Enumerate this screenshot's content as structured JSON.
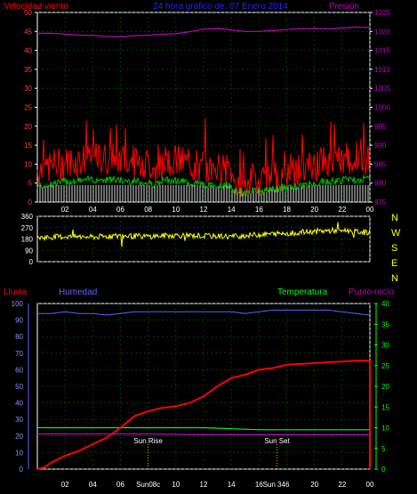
{
  "header": {
    "left_label": "Velocidad viento",
    "title": "24 hora gráfico de:  07 Enero 2014",
    "right_label": "Presión"
  },
  "colors": {
    "wind": "#ff0000",
    "gust_green": "#00c000",
    "calm_white": "#ffffff",
    "pressure": "#c000c0",
    "direction": "#ffff00",
    "rain": "#ff0000",
    "humidity": "#6060ff",
    "temperature": "#00ff00",
    "dewpoint": "#c000c0",
    "title_blue": "#2020ff",
    "axis": "#ffffff",
    "grid": "#006000",
    "sun_marker": "#ffff00"
  },
  "chart_data": [
    {
      "type": "line",
      "name": "wind-pressure",
      "x_ticks": [
        "02",
        "04",
        "06",
        "08",
        "10",
        "12",
        "14",
        "16",
        "18",
        "20",
        "22",
        "00"
      ],
      "y_left_ticks": [
        0,
        5,
        10,
        15,
        20,
        25,
        30,
        35,
        40,
        45,
        50
      ],
      "ylim_left": [
        0,
        50
      ],
      "y_right_ticks": [
        975,
        980,
        985,
        990,
        995,
        1000,
        1005,
        1010,
        1015,
        1020,
        1025
      ],
      "ylim_right": [
        975,
        1025
      ],
      "pressure_x": [
        0,
        1,
        2,
        3,
        4,
        5,
        6,
        7,
        8,
        9,
        10,
        11,
        12,
        13,
        14,
        15,
        16,
        17,
        18,
        19,
        20,
        21,
        22,
        23,
        24
      ],
      "pressure_y": [
        1019.5,
        1019.5,
        1019.3,
        1019.0,
        1019.0,
        1018.7,
        1018.6,
        1018.9,
        1019.0,
        1019.3,
        1019.4,
        1019.9,
        1020.6,
        1020.8,
        1020.4,
        1020.0,
        1020.0,
        1020.2,
        1020.5,
        1020.7,
        1020.8,
        1020.7,
        1020.9,
        1021.2,
        1021.0
      ]
    },
    {
      "type": "line",
      "name": "wind-direction",
      "y_ticks": [
        0,
        90,
        180,
        270,
        360
      ],
      "ylim": [
        0,
        360
      ],
      "compass": [
        "N",
        "W",
        "S",
        "E",
        "N"
      ],
      "direction_x": [
        0,
        2,
        4,
        6,
        8,
        10,
        12,
        14,
        16,
        18,
        20,
        22,
        24
      ],
      "direction_y": [
        190,
        200,
        195,
        205,
        200,
        210,
        205,
        200,
        215,
        225,
        240,
        250,
        230
      ]
    },
    {
      "type": "line",
      "name": "rain-humidity-temp",
      "header": {
        "rain_label": "Lluvia",
        "humidity_label": "Humedad",
        "temperature_label": "Temperatura",
        "dewpoint_label": "Punto rocío"
      },
      "x_ticks": [
        "02",
        "04",
        "06",
        "08",
        "10",
        "12",
        "14",
        "16",
        "18",
        "20",
        "22",
        "00"
      ],
      "x_ticks_extra": {
        "sun_08": "Sun08c",
        "sun_346": "Sun 346"
      },
      "y_left_ticks": [
        0,
        10,
        20,
        30,
        40,
        50,
        60,
        70,
        80,
        90,
        100
      ],
      "ylim_left": [
        0,
        100
      ],
      "y_right_ticks": [
        0,
        5,
        10,
        15,
        20,
        25,
        30,
        35,
        40
      ],
      "ylim_right": [
        0,
        40
      ],
      "sun_rise_label": "Sun Rise",
      "sun_set_label": "Sun Set",
      "sun_rise_x": 8.0,
      "sun_set_x": 17.3,
      "rain_x": [
        0,
        0.5,
        1,
        2,
        3,
        4,
        5,
        6,
        7,
        8,
        9,
        10,
        11,
        12,
        13,
        14,
        15,
        16,
        17,
        18,
        19,
        20,
        21,
        22,
        23,
        23.9,
        24,
        24
      ],
      "rain_y": [
        0,
        1,
        4,
        8,
        11,
        15,
        19,
        25,
        32,
        35,
        37,
        38,
        40,
        44,
        50,
        55,
        57,
        60,
        61,
        63,
        63.5,
        64,
        64.5,
        65,
        65.5,
        65.5,
        65.5,
        0
      ],
      "humidity_x": [
        0,
        1,
        2,
        3,
        4,
        5,
        6,
        7,
        8,
        9,
        10,
        11,
        12,
        13,
        14,
        15,
        16,
        17,
        18,
        19,
        20,
        21,
        22,
        23,
        24
      ],
      "humidity_y": [
        94,
        94,
        95,
        94,
        94,
        93,
        94,
        95,
        95,
        95,
        95,
        95,
        95,
        95,
        95,
        94,
        95,
        96,
        96,
        96,
        96,
        96,
        95,
        94,
        93
      ],
      "temperature_x": [
        0,
        4,
        8,
        12,
        16,
        20,
        24
      ],
      "temperature_y": [
        10,
        10,
        10,
        10,
        9.5,
        9.5,
        9.5
      ],
      "dewpoint_x": [
        0,
        4,
        8,
        12,
        16,
        20,
        24
      ],
      "dewpoint_y": [
        8.5,
        8.5,
        8.5,
        8.3,
        8.3,
        8.3,
        8.3
      ]
    }
  ]
}
